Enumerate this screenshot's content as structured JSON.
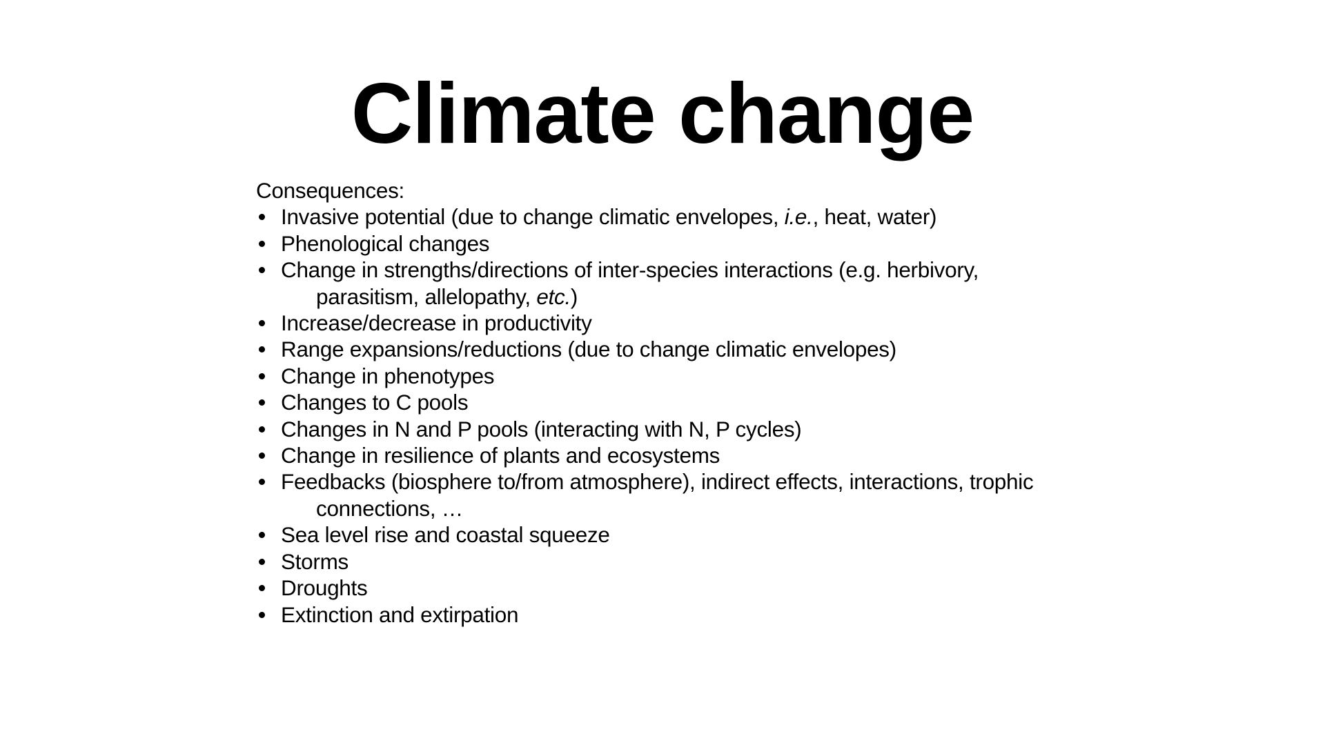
{
  "slide": {
    "title": "Climate change",
    "intro": "Consequences:",
    "bullets": [
      {
        "lines": [
          {
            "parts": [
              {
                "text": "Invasive potential (due to change climatic envelopes, "
              },
              {
                "text": "i.e.",
                "italic": true
              },
              {
                "text": ", heat, water)"
              }
            ]
          }
        ]
      },
      {
        "lines": [
          {
            "parts": [
              {
                "text": "Phenological changes"
              }
            ]
          }
        ]
      },
      {
        "lines": [
          {
            "parts": [
              {
                "text": "Change in strengths/directions of inter-species interactions (e.g. herbivory,"
              }
            ]
          },
          {
            "parts": [
              {
                "text": "parasitism, allelopathy, "
              },
              {
                "text": "etc.",
                "italic": true
              },
              {
                "text": ")"
              }
            ]
          }
        ]
      },
      {
        "lines": [
          {
            "parts": [
              {
                "text": "Increase/decrease in productivity"
              }
            ]
          }
        ]
      },
      {
        "lines": [
          {
            "parts": [
              {
                "text": "Range expansions/reductions (due to change climatic envelopes)"
              }
            ]
          }
        ]
      },
      {
        "lines": [
          {
            "parts": [
              {
                "text": "Change in phenotypes"
              }
            ]
          }
        ]
      },
      {
        "lines": [
          {
            "parts": [
              {
                "text": "Changes to C pools"
              }
            ]
          }
        ]
      },
      {
        "lines": [
          {
            "parts": [
              {
                "text": "Changes in N and P pools (interacting with N, P cycles)"
              }
            ]
          }
        ]
      },
      {
        "lines": [
          {
            "parts": [
              {
                "text": "Change in resilience of plants and ecosystems"
              }
            ]
          }
        ]
      },
      {
        "lines": [
          {
            "parts": [
              {
                "text": "Feedbacks (biosphere to/from atmosphere), indirect effects, interactions, trophic"
              }
            ]
          },
          {
            "parts": [
              {
                "text": "connections, …"
              }
            ]
          }
        ]
      },
      {
        "lines": [
          {
            "parts": [
              {
                "text": "Sea level rise and coastal squeeze"
              }
            ]
          }
        ]
      },
      {
        "lines": [
          {
            "parts": [
              {
                "text": "Storms"
              }
            ]
          }
        ]
      },
      {
        "lines": [
          {
            "parts": [
              {
                "text": "Droughts"
              }
            ]
          }
        ]
      },
      {
        "lines": [
          {
            "parts": [
              {
                "text": "Extinction and extirpation"
              }
            ]
          }
        ]
      }
    ]
  }
}
